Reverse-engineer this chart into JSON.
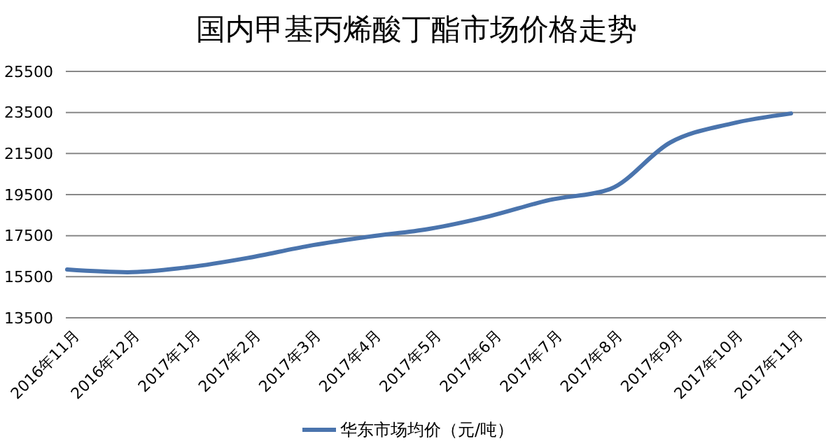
{
  "chart_data": {
    "type": "line",
    "title": "国内甲基丙烯酸丁酯市场价格走势",
    "categories": [
      "2016年11月",
      "2016年12月",
      "2017年1月",
      "2017年2月",
      "2017年3月",
      "2017年4月",
      "2017年5月",
      "2017年6月",
      "2017年7月",
      "2017年8月",
      "2017年9月",
      "2017年10月",
      "2017年11月"
    ],
    "series": [
      {
        "name": "华东市场均价（元/吨）",
        "color": "#4a74ad",
        "values": [
          15850,
          15720,
          15960,
          16420,
          17000,
          17450,
          17830,
          18450,
          19240,
          19770,
          22040,
          22950,
          23450
        ]
      }
    ],
    "ylim": [
      13500,
      25500
    ],
    "yticks": [
      13500,
      15500,
      17500,
      19500,
      21500,
      23500,
      25500
    ],
    "grid": "y",
    "legend": "bottom",
    "marker": "none",
    "line_style": "solid"
  }
}
